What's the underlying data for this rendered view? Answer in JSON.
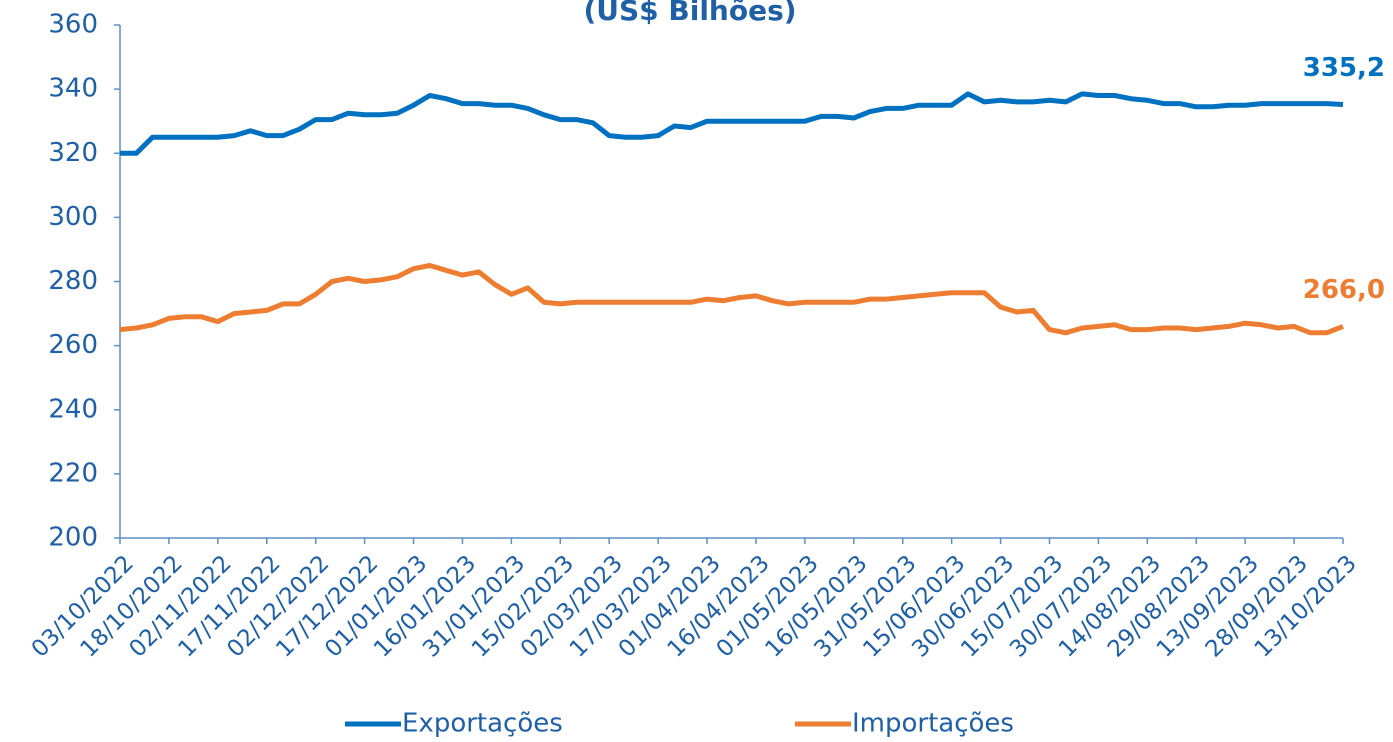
{
  "chart_data": {
    "type": "line",
    "title": "(US$ Bilhões)",
    "x": [
      "03/10/2022",
      "08/10/2022",
      "13/10/2022",
      "18/10/2022",
      "23/10/2022",
      "28/10/2022",
      "02/11/2022",
      "07/11/2022",
      "12/11/2022",
      "17/11/2022",
      "22/11/2022",
      "27/11/2022",
      "02/12/2022",
      "07/12/2022",
      "12/12/2022",
      "17/12/2022",
      "22/12/2022",
      "27/12/2022",
      "01/01/2023",
      "06/01/2023",
      "11/01/2023",
      "16/01/2023",
      "21/01/2023",
      "26/01/2023",
      "31/01/2023",
      "05/02/2023",
      "10/02/2023",
      "15/02/2023",
      "20/02/2023",
      "25/02/2023",
      "02/03/2023",
      "07/03/2023",
      "12/03/2023",
      "17/03/2023",
      "22/03/2023",
      "27/03/2023",
      "01/04/2023",
      "06/04/2023",
      "11/04/2023",
      "16/04/2023",
      "21/04/2023",
      "26/04/2023",
      "01/05/2023",
      "06/05/2023",
      "11/05/2023",
      "16/05/2023",
      "21/05/2023",
      "26/05/2023",
      "31/05/2023",
      "05/06/2023",
      "10/06/2023",
      "15/06/2023",
      "20/06/2023",
      "25/06/2023",
      "30/06/2023",
      "05/07/2023",
      "10/07/2023",
      "15/07/2023",
      "20/07/2023",
      "25/07/2023",
      "30/07/2023",
      "04/08/2023",
      "09/08/2023",
      "14/08/2023",
      "19/08/2023",
      "24/08/2023",
      "29/08/2023",
      "03/09/2023",
      "08/09/2023",
      "13/09/2023",
      "18/09/2023",
      "23/09/2023",
      "28/09/2023",
      "03/10/2023",
      "08/10/2023",
      "13/10/2023"
    ],
    "xlim": [
      "03/10/2022",
      "13/10/2023"
    ],
    "xticks": [
      "03/10/2022",
      "18/10/2022",
      "02/11/2022",
      "17/11/2022",
      "02/12/2022",
      "17/12/2022",
      "01/01/2023",
      "16/01/2023",
      "31/01/2023",
      "15/02/2023",
      "02/03/2023",
      "17/03/2023",
      "01/04/2023",
      "16/04/2023",
      "01/05/2023",
      "16/05/2023",
      "31/05/2023",
      "15/06/2023",
      "30/06/2023",
      "15/07/2023",
      "30/07/2023",
      "14/08/2023",
      "29/08/2023",
      "13/09/2023",
      "28/09/2023",
      "13/10/2023"
    ],
    "ylim": [
      200,
      360
    ],
    "yticks": [
      200,
      220,
      240,
      260,
      280,
      300,
      320,
      340,
      360
    ],
    "legend": "bottom",
    "series": [
      {
        "name": "Exportações",
        "color": "#0070c0",
        "last_label": "335,2",
        "values": [
          320,
          320,
          325,
          325,
          325,
          325,
          325,
          325.5,
          327,
          325.5,
          325.5,
          327.5,
          330.5,
          330.5,
          332.5,
          332,
          332,
          332.5,
          335,
          338,
          337,
          335.5,
          335.5,
          335,
          335,
          334,
          332,
          330.5,
          330.5,
          329.5,
          325.5,
          325,
          325,
          325.5,
          328.5,
          328,
          330,
          330,
          330,
          330,
          330,
          330,
          330,
          331.5,
          331.5,
          331,
          333,
          334,
          334,
          335,
          335,
          335,
          338.5,
          336,
          336.5,
          336,
          336,
          336.5,
          336,
          338.5,
          338,
          338,
          337,
          336.5,
          335.5,
          335.5,
          334.5,
          334.5,
          335,
          335,
          335.5,
          335.5,
          335.5,
          335.5,
          335.5,
          335.2
        ]
      },
      {
        "name": "Importações",
        "color": "#ed7d31",
        "last_label": "266,0",
        "values": [
          265,
          265.5,
          266.5,
          268.5,
          269,
          269,
          267.5,
          270,
          270.5,
          271,
          273,
          273,
          276,
          280,
          281,
          280,
          280.5,
          281.5,
          284,
          285,
          283.5,
          282,
          283,
          279,
          276,
          278,
          273.5,
          273,
          273.5,
          273.5,
          273.5,
          273.5,
          273.5,
          273.5,
          273.5,
          273.5,
          274.5,
          274,
          275,
          275.5,
          274,
          273,
          273.5,
          273.5,
          273.5,
          273.5,
          274.5,
          274.5,
          275,
          275.5,
          276,
          276.5,
          276.5,
          276.5,
          272,
          270.5,
          271,
          265,
          264,
          265.5,
          266,
          266.5,
          265,
          265,
          265.5,
          265.5,
          265,
          265.5,
          266,
          267,
          266.5,
          265.5,
          266,
          264,
          264,
          266
        ]
      }
    ]
  }
}
